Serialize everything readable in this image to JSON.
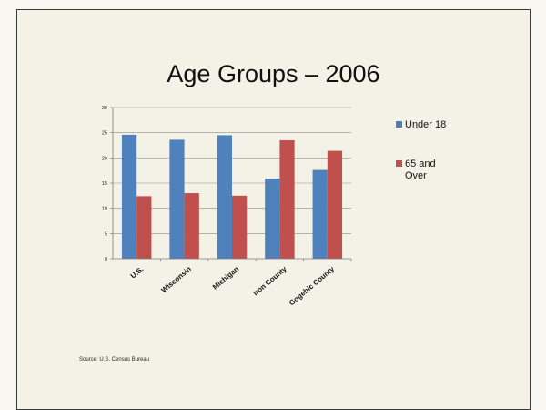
{
  "slide": {
    "title": "Age Groups – 2006",
    "source": "Source:  U.S. Census Bureau"
  },
  "chart_data": {
    "type": "bar",
    "categories": [
      "U.S.",
      "Wisconsin",
      "Michigan",
      "Iron County",
      "Gogebic County"
    ],
    "series": [
      {
        "name": "Under 18",
        "color": "#4f81bd",
        "values": [
          24.6,
          23.6,
          24.5,
          15.9,
          17.6
        ]
      },
      {
        "name": "65 and Over",
        "color": "#c0504d",
        "values": [
          12.4,
          13.0,
          12.5,
          23.5,
          21.4
        ]
      }
    ],
    "ylim": [
      0,
      30
    ],
    "yticks": [
      0,
      5,
      10,
      15,
      20,
      25,
      30
    ],
    "grid": true,
    "legend": "right"
  }
}
